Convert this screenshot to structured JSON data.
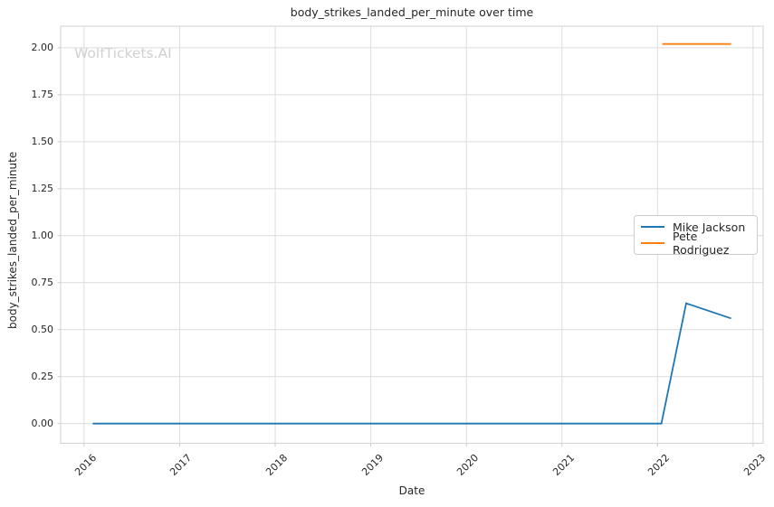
{
  "watermark": "WolfTickets.AI",
  "chart_data": {
    "type": "line",
    "title": "body_strikes_landed_per_minute over time",
    "xlabel": "Date",
    "ylabel": "body_strikes_landed_per_minute",
    "x_unit": "decimal_year",
    "xlim": [
      2015.755,
      2023.105
    ],
    "ylim": [
      -0.105,
      2.115
    ],
    "grid": true,
    "legend_position": "center right",
    "x_ticks": [
      2016,
      2017,
      2018,
      2019,
      2020,
      2021,
      2022,
      2023
    ],
    "x_tick_labels": [
      "2016",
      "2017",
      "2018",
      "2019",
      "2020",
      "2021",
      "2022",
      "2023"
    ],
    "y_ticks": [
      0.0,
      0.25,
      0.5,
      0.75,
      1.0,
      1.25,
      1.5,
      1.75,
      2.0
    ],
    "y_tick_labels": [
      "0.00",
      "0.25",
      "0.50",
      "0.75",
      "1.00",
      "1.25",
      "1.50",
      "1.75",
      "2.00"
    ],
    "series": [
      {
        "name": "Mike Jackson",
        "color": "#1f77b4",
        "points": [
          [
            2016.09,
            0.0
          ],
          [
            2022.04,
            0.0
          ],
          [
            2022.3,
            0.64
          ],
          [
            2022.77,
            0.56
          ]
        ]
      },
      {
        "name": "Pete Rodriguez",
        "color": "#ff7f0e",
        "points": [
          [
            2022.05,
            2.02
          ],
          [
            2022.77,
            2.02
          ]
        ]
      }
    ]
  },
  "colors": {
    "grid": "#dcdcdc",
    "spine": "#d0d0d0",
    "tick": "#cacaca",
    "text": "#262626",
    "watermark": "#d1d1d1"
  }
}
